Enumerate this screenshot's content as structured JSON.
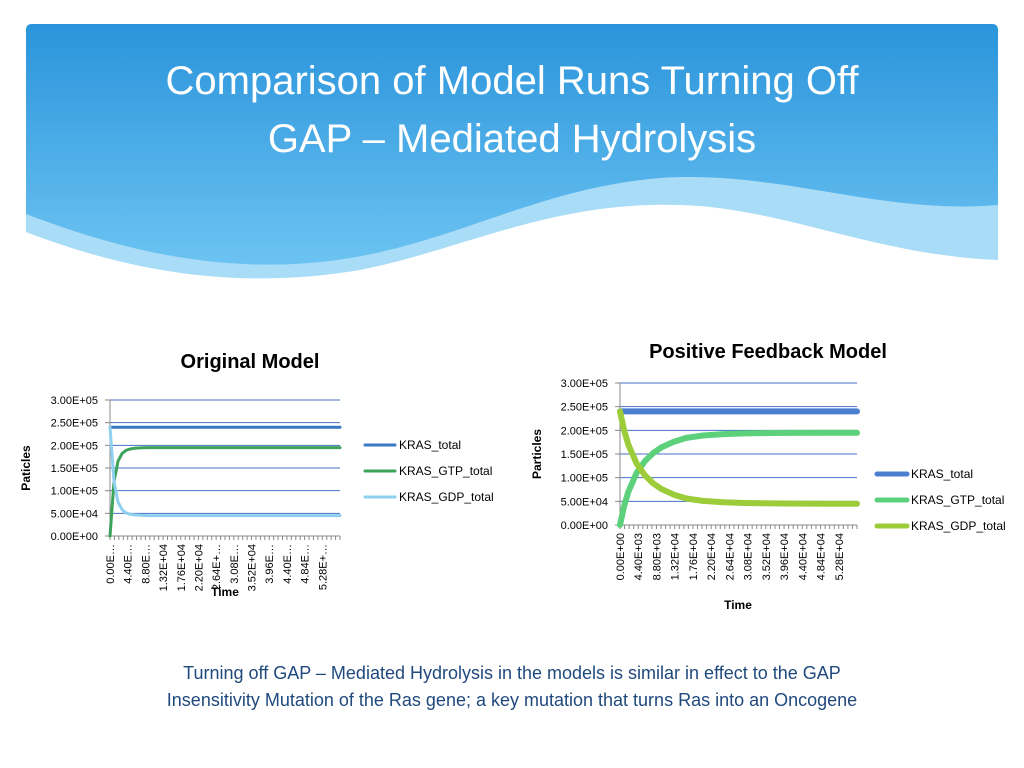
{
  "slide": {
    "title_line1": "Comparison of Model Runs Turning Off",
    "title_line2": "GAP – Mediated Hydrolysis",
    "caption_line1": "Turning off GAP – Mediated Hydrolysis in the models is similar in effect to the GAP",
    "caption_line2": "Insensitivity Mutation of the Ras gene; a key mutation that turns Ras into an Oncogene"
  },
  "colors": {
    "header_blue": "#2a94db",
    "caption_text": "#1f497d"
  },
  "chart_data": [
    {
      "type": "line",
      "title": "Original Model",
      "xlabel": "Time",
      "ylabel": "Paticles",
      "ylim": [
        0,
        300000
      ],
      "yticks": [
        "0.00E+00",
        "5.00E+04",
        "1.00E+05",
        "1.50E+05",
        "2.00E+05",
        "2.50E+05",
        "3.00E+05"
      ],
      "xlim": [
        0,
        57200
      ],
      "xticks": [
        "0.00E…",
        "4.40E…",
        "8.80E…",
        "1.32E+04",
        "1.76E+04",
        "2.20E+04",
        "2.64E+…",
        "3.08E…",
        "3.52E+04",
        "3.96E…",
        "4.40E…",
        "4.84E…",
        "5.28E+…"
      ],
      "legend_position": "right",
      "series": [
        {
          "name": "KRAS_total",
          "color": "#3a78c3",
          "x": [
            0,
            1000,
            2000,
            3000,
            5000,
            10000,
            20000,
            30000,
            40000,
            50000,
            57200
          ],
          "y": [
            240000,
            240000,
            240000,
            240000,
            240000,
            240000,
            240000,
            240000,
            240000,
            240000,
            240000
          ]
        },
        {
          "name": "KRAS_GTP_total",
          "color": "#3da35a",
          "x": [
            0,
            1000,
            2000,
            3000,
            4000,
            5000,
            6000,
            8000,
            10000,
            20000,
            30000,
            40000,
            50000,
            57200
          ],
          "y": [
            0,
            120000,
            165000,
            182000,
            189000,
            192000,
            193500,
            194500,
            195000,
            195000,
            195000,
            195000,
            195000,
            195000
          ]
        },
        {
          "name": "KRAS_GDP_total",
          "color": "#8fcff0",
          "x": [
            0,
            1000,
            2000,
            3000,
            4000,
            5000,
            6000,
            8000,
            10000,
            20000,
            30000,
            40000,
            50000,
            57200
          ],
          "y": [
            240000,
            120000,
            75000,
            58000,
            51000,
            48000,
            46500,
            45500,
            45000,
            45000,
            45000,
            45000,
            45000,
            45000
          ]
        }
      ]
    },
    {
      "type": "line",
      "title": "Positive Feedback Model",
      "xlabel": "Time",
      "ylabel": "Particles",
      "ylim": [
        0,
        300000
      ],
      "yticks": [
        "0.00E+00",
        "5.00E+04",
        "1.00E+05",
        "1.50E+05",
        "2.00E+05",
        "2.50E+05",
        "3.00E+05"
      ],
      "xlim": [
        0,
        57200
      ],
      "xticks": [
        "0.00E+00",
        "4.40E+03",
        "8.80E+03",
        "1.32E+04",
        "1.76E+04",
        "2.20E+04",
        "2.64E+04",
        "3.08E+04",
        "3.52E+04",
        "3.96E+04",
        "4.40E+04",
        "4.84E+04",
        "5.28E+04"
      ],
      "legend_position": "right",
      "series": [
        {
          "name": "KRAS_total",
          "color": "#4a7fd0",
          "x": [
            0,
            10000,
            20000,
            30000,
            40000,
            50000,
            57200
          ],
          "y": [
            240000,
            240000,
            240000,
            240000,
            240000,
            240000,
            240000
          ]
        },
        {
          "name": "KRAS_GTP_total",
          "color": "#5cd07a",
          "x": [
            0,
            1000,
            2000,
            4000,
            6000,
            8000,
            10000,
            13000,
            16000,
            20000,
            25000,
            30000,
            40000,
            50000,
            57200
          ],
          "y": [
            0,
            40000,
            70000,
            110000,
            135000,
            152000,
            164000,
            176000,
            184000,
            189000,
            192000,
            193500,
            194500,
            195000,
            195000
          ]
        },
        {
          "name": "KRAS_GDP_total",
          "color": "#9ccc3a",
          "x": [
            0,
            1000,
            2000,
            4000,
            6000,
            8000,
            10000,
            13000,
            16000,
            20000,
            25000,
            30000,
            40000,
            50000,
            57200
          ],
          "y": [
            240000,
            200000,
            170000,
            130000,
            105000,
            88000,
            76000,
            64000,
            56000,
            51000,
            48000,
            46500,
            45500,
            45000,
            45000
          ]
        }
      ]
    }
  ]
}
